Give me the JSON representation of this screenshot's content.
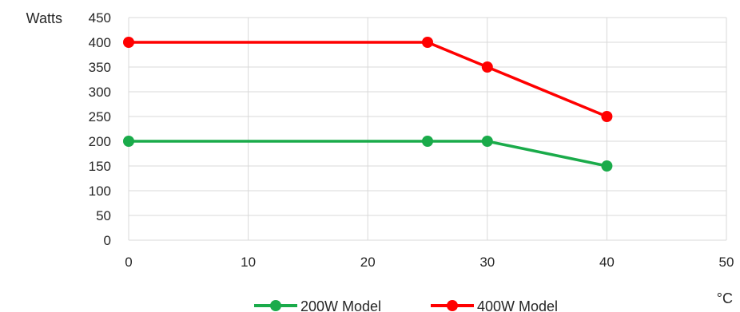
{
  "chart_data": {
    "type": "line",
    "ylabel": "Watts",
    "xlabel": "°C",
    "xlim": [
      0,
      50
    ],
    "ylim": [
      0,
      450
    ],
    "x_ticks": [
      "0",
      "10",
      "20",
      "30",
      "40",
      "50"
    ],
    "y_ticks": [
      "0",
      "50",
      "100",
      "150",
      "200",
      "250",
      "300",
      "350",
      "400",
      "450"
    ],
    "grid": true,
    "legend_position": "bottom",
    "series": [
      {
        "name": "200W Model",
        "color": "#1aab4a",
        "x": [
          0,
          25,
          30,
          40
        ],
        "y": [
          200,
          200,
          200,
          150
        ]
      },
      {
        "name": "400W Model",
        "color": "#ff0000",
        "x": [
          0,
          25,
          30,
          40
        ],
        "y": [
          400,
          400,
          350,
          250
        ]
      }
    ]
  }
}
